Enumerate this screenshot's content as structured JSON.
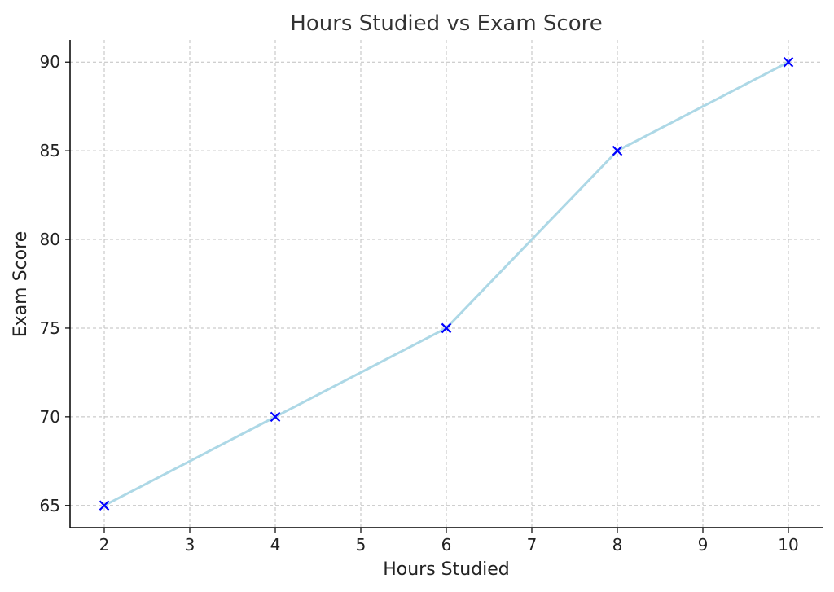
{
  "chart_data": {
    "type": "line",
    "title": "Hours Studied vs Exam Score",
    "xlabel": "Hours Studied",
    "ylabel": "Exam Score",
    "x": [
      2,
      4,
      6,
      8,
      10
    ],
    "series": [
      {
        "values": [
          65,
          70,
          75,
          85,
          90
        ]
      }
    ],
    "xlim": [
      1.6,
      10.4
    ],
    "ylim": [
      63.75,
      91.25
    ],
    "xticks": [
      "2",
      "3",
      "4",
      "5",
      "6",
      "7",
      "8",
      "9",
      "10"
    ],
    "yticks": [
      "65",
      "70",
      "75",
      "80",
      "85",
      "90"
    ],
    "grid": true,
    "marker": "x",
    "colors": {
      "line": "#add8e6",
      "marker": "#0000ff"
    }
  }
}
